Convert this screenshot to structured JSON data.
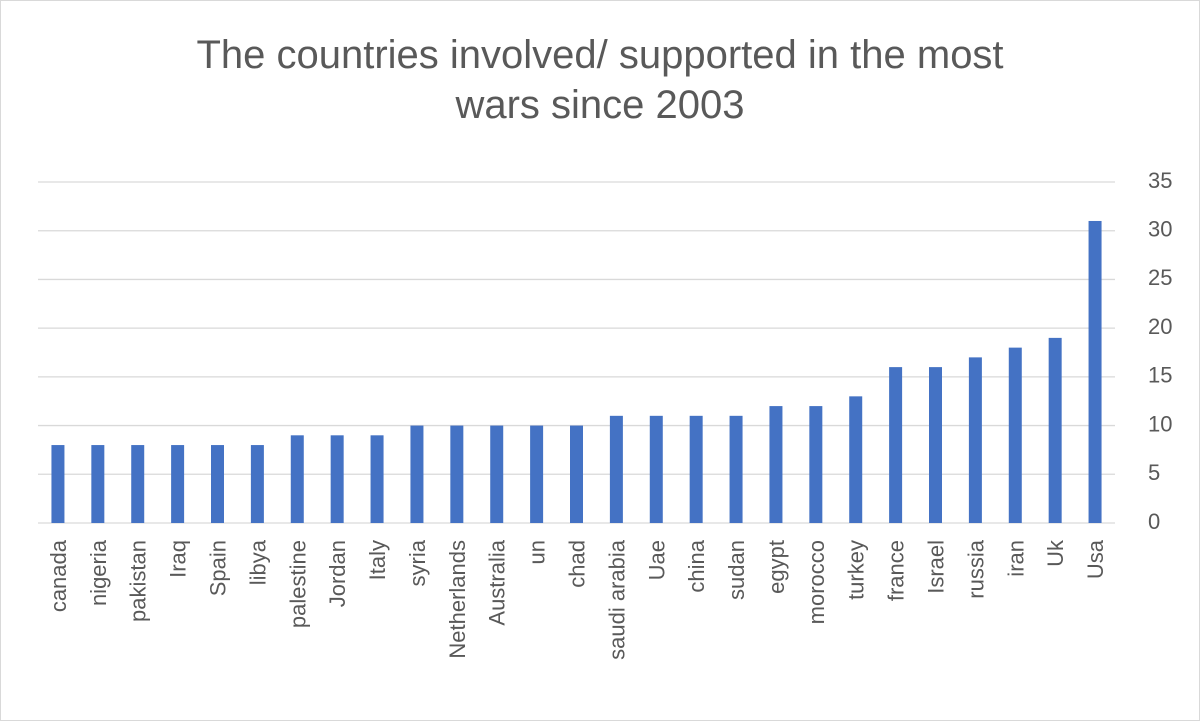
{
  "chart_data": {
    "type": "bar",
    "title_lines": [
      "The countries involved/ supported in the most",
      "wars since 2003"
    ],
    "categories": [
      "canada",
      "nigeria",
      "pakistan",
      "Iraq",
      "Spain",
      "libya",
      "palestine",
      "Jordan",
      "Italy",
      "syria",
      "Netherlands",
      "Australia",
      "un",
      "chad",
      "saudi arabia",
      "Uae",
      "china",
      "sudan",
      "egypt",
      "morocco",
      "turkey",
      "france",
      "Israel",
      "russia",
      "iran",
      "Uk",
      "Usa"
    ],
    "values": [
      8,
      8,
      8,
      8,
      8,
      8,
      9,
      9,
      9,
      10,
      10,
      10,
      10,
      10,
      11,
      11,
      11,
      11,
      12,
      12,
      13,
      16,
      16,
      17,
      18,
      19,
      31
    ],
    "ylim": [
      0,
      35
    ],
    "yticks": [
      0,
      5,
      10,
      15,
      20,
      25,
      30,
      35
    ],
    "y_axis_side": "right",
    "xlabel": "",
    "ylabel": "",
    "grid": true,
    "legend": "none",
    "bar_color": "#4472c4"
  }
}
